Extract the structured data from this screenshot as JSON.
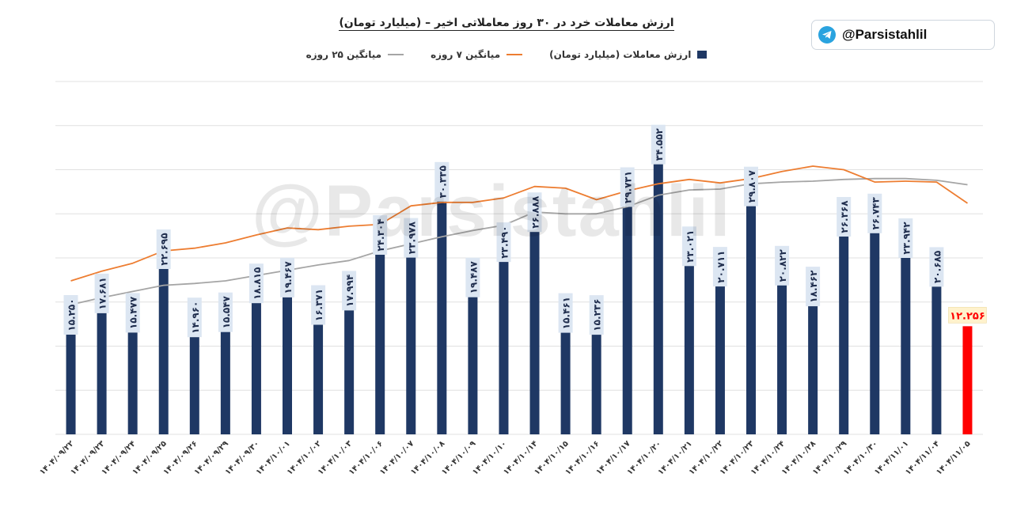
{
  "header": {
    "title": "ارزش معاملات خرد در ۳۰ روز معاملاتی اخیر – (میلیارد تومان)",
    "handle": "@Parsistahlil",
    "watermark": "@Parsistahlil"
  },
  "colors": {
    "bar": "#1f3864",
    "last_bar": "#ff0000",
    "ma7": "#ed7d31",
    "ma25": "#a5a5a5",
    "grid": "#e0e0e0",
    "label_bg": "#dce6f2",
    "last_label_bg": "#fff2cc",
    "last_label_text": "#ff0000"
  },
  "chart_data": {
    "type": "bar",
    "title": "ارزش معاملات خرد در ۳۰ روز معاملاتی اخیر – (میلیارد تومان)",
    "ylim": [
      0,
      40
    ],
    "yticks": [
      0,
      5,
      10,
      15,
      20,
      25,
      30,
      35,
      40
    ],
    "grid": true,
    "legend_position": "top-center",
    "categories": [
      "۱۴۰۴/۰۹/۲۲",
      "۱۴۰۴/۰۹/۲۳",
      "۱۴۰۴/۰۹/۲۴",
      "۱۴۰۴/۰۹/۲۵",
      "۱۴۰۴/۰۹/۲۶",
      "۱۴۰۴/۰۹/۲۹",
      "۱۴۰۴/۰۹/۳۰",
      "۱۴۰۴/۱۰/۰۱",
      "۱۴۰۴/۱۰/۰۲",
      "۱۴۰۴/۱۰/۰۳",
      "۱۴۰۴/۱۰/۰۶",
      "۱۴۰۴/۱۰/۰۷",
      "۱۴۰۴/۱۰/۰۸",
      "۱۴۰۴/۱۰/۰۹",
      "۱۴۰۴/۱۰/۱۰",
      "۱۴۰۴/۱۰/۱۴",
      "۱۴۰۴/۱۰/۱۵",
      "۱۴۰۴/۱۰/۱۶",
      "۱۴۰۴/۱۰/۱۷",
      "۱۴۰۴/۱۰/۲۰",
      "۱۴۰۴/۱۰/۲۱",
      "۱۴۰۴/۱۰/۲۲",
      "۱۴۰۴/۱۰/۲۳",
      "۱۴۰۴/۱۰/۲۴",
      "۱۴۰۴/۱۰/۲۸",
      "۱۴۰۴/۱۰/۲۹",
      "۱۴۰۴/۱۰/۳۰",
      "۱۴۰۴/۱۱/۰۱",
      "۱۴۰۴/۱۱/۰۴",
      "۱۴۰۴/۱۱/۰۵"
    ],
    "value_labels": [
      "۱۵.۲۵۰",
      "۱۷.۶۸۱",
      "۱۵.۴۷۷",
      "۲۲.۶۹۵",
      "۱۴.۹۶۰",
      "۱۵.۵۴۷",
      "۱۸.۸۱۵",
      "۱۹.۴۶۷",
      "۱۶.۳۷۱",
      "۱۷.۹۹۴",
      "۲۴.۳۰۴",
      "۲۳.۹۷۸",
      "۳۰.۳۳۵",
      "۱۹.۴۸۷",
      "۲۳.۴۹۰",
      "۲۶.۸۸۸",
      "۱۵.۴۶۱",
      "۱۵.۲۳۶",
      "۲۹.۷۳۱",
      "۳۴.۵۵۲",
      "۲۳.۰۲۱",
      "۲۰.۷۱۱",
      "۲۹.۸۰۷",
      "۲۰.۸۲۲",
      "۱۸.۴۶۲",
      "۲۶.۳۶۸",
      "۲۶.۷۴۳",
      "۲۳.۹۴۲",
      "۲۰.۶۸۵",
      "۱۲.۲۵۶"
    ],
    "series": [
      {
        "name": "ارزش معاملات (میلیارد تومان)",
        "type": "bar",
        "values": [
          15.25,
          17.681,
          15.477,
          22.695,
          14.96,
          15.547,
          18.815,
          19.467,
          16.371,
          17.994,
          24.304,
          23.978,
          30.335,
          19.487,
          23.49,
          26.888,
          15.461,
          15.236,
          29.731,
          34.552,
          23.021,
          20.711,
          29.807,
          20.822,
          18.462,
          26.368,
          26.743,
          23.942,
          20.685,
          12.256
        ]
      },
      {
        "name": "میانگین ۷ روزه",
        "type": "line",
        "values": [
          17.4,
          18.5,
          19.4,
          20.8,
          21.1,
          21.7,
          22.6,
          23.4,
          23.2,
          23.6,
          23.8,
          25.9,
          26.3,
          26.3,
          26.8,
          28.1,
          27.9,
          26.6,
          27.6,
          28.4,
          28.9,
          28.5,
          29.0,
          29.8,
          30.4,
          30.0,
          28.6,
          28.7,
          28.6,
          26.2
        ]
      },
      {
        "name": "میانگین ۲۵ روزه",
        "type": "line",
        "values": [
          14.7,
          15.5,
          16.2,
          16.9,
          17.1,
          17.4,
          18.0,
          18.6,
          19.2,
          19.7,
          20.8,
          21.6,
          22.4,
          23.1,
          23.7,
          25.2,
          25.0,
          25.0,
          25.8,
          27.1,
          27.7,
          27.8,
          28.4,
          28.6,
          28.7,
          28.9,
          29.0,
          29.0,
          28.8,
          28.3
        ]
      }
    ]
  }
}
